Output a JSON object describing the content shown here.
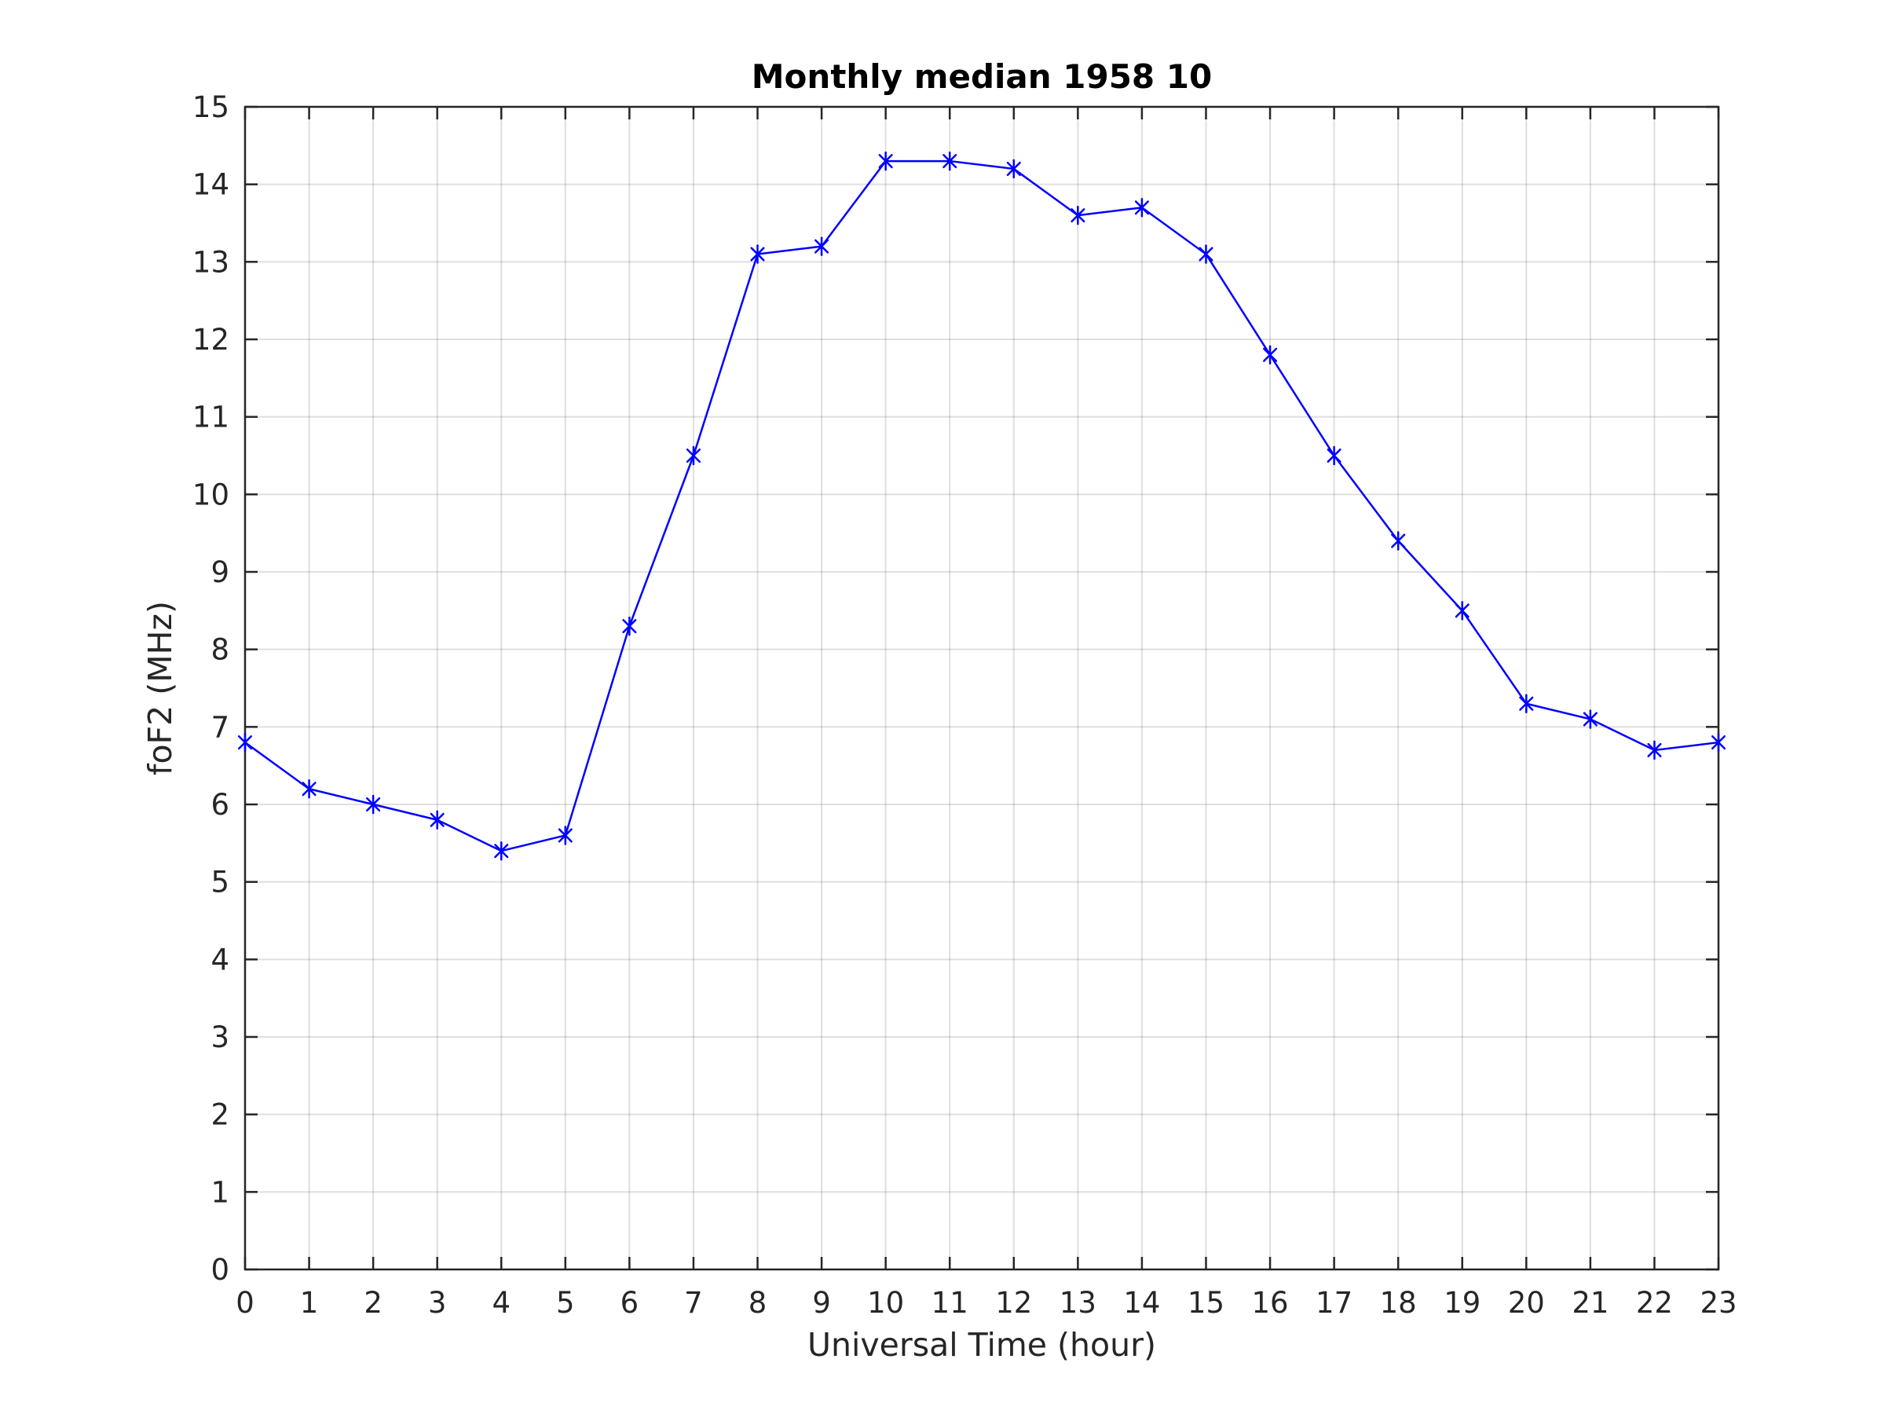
{
  "chart_data": {
    "type": "line",
    "title": "Monthly median 1958 10",
    "xlabel": "Universal Time (hour)",
    "ylabel": "foF2 (MHz)",
    "xlim": [
      0,
      23
    ],
    "ylim": [
      0,
      15
    ],
    "xticks": [
      0,
      1,
      2,
      3,
      4,
      5,
      6,
      7,
      8,
      9,
      10,
      11,
      12,
      13,
      14,
      15,
      16,
      17,
      18,
      19,
      20,
      21,
      22,
      23
    ],
    "yticks": [
      0,
      1,
      2,
      3,
      4,
      5,
      6,
      7,
      8,
      9,
      10,
      11,
      12,
      13,
      14,
      15
    ],
    "grid": true,
    "series": [
      {
        "color": "#0000ff",
        "marker": "asterisk",
        "x": [
          0,
          1,
          2,
          3,
          4,
          5,
          6,
          7,
          8,
          9,
          10,
          11,
          12,
          13,
          14,
          15,
          16,
          17,
          18,
          19,
          20,
          21,
          22,
          23
        ],
        "y": [
          6.8,
          6.2,
          6.0,
          5.8,
          5.4,
          5.6,
          8.3,
          10.5,
          13.1,
          13.2,
          14.3,
          14.3,
          14.2,
          13.6,
          13.7,
          13.1,
          11.8,
          10.5,
          9.4,
          8.5,
          7.3,
          7.1,
          6.7,
          6.8
        ]
      }
    ]
  }
}
